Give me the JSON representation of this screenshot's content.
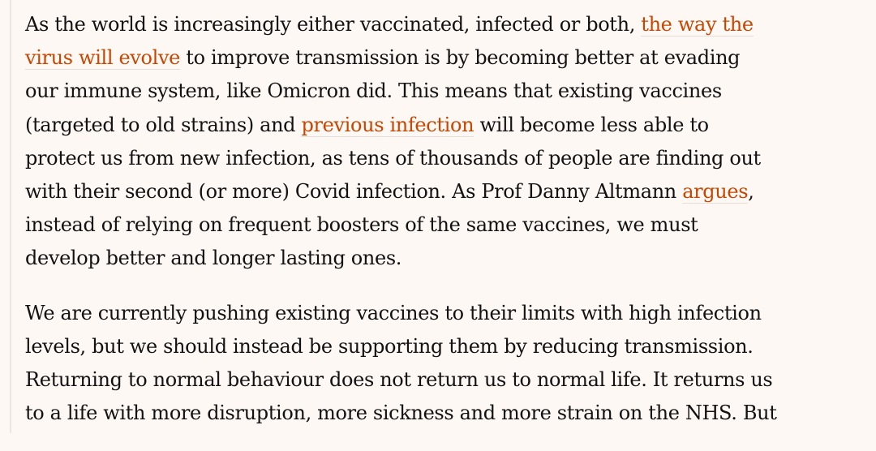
{
  "colors": {
    "background": "#fdf8f4",
    "text": "#121212",
    "link": "#c74600"
  },
  "paragraphs": [
    {
      "lines": [
        [
          {
            "t": "As the world is increasingly either vaccinated, infected or both, "
          },
          {
            "t": "the way the",
            "link": true
          }
        ],
        [
          {
            "t": "virus will evolve",
            "link": true
          },
          {
            "t": " to improve transmission is by becoming better at evading"
          }
        ],
        [
          {
            "t": "our immune system, like Omicron did. This means that existing vaccines"
          }
        ],
        [
          {
            "t": "(targeted to old strains) and "
          },
          {
            "t": "previous infection",
            "link": true
          },
          {
            "t": " will become less able to"
          }
        ],
        [
          {
            "t": "protect us from new infection, as tens of thousands of people are finding out"
          }
        ],
        [
          {
            "t": "with their second (or more) Covid infection. As Prof Danny Altmann "
          },
          {
            "t": "argues",
            "link": true
          },
          {
            "t": ","
          }
        ],
        [
          {
            "t": "instead of relying on frequent boosters of the same vaccines, we must"
          }
        ],
        [
          {
            "t": "develop better and longer lasting ones."
          }
        ]
      ]
    },
    {
      "lines": [
        [
          {
            "t": "We are currently pushing existing vaccines to their limits with high infection"
          }
        ],
        [
          {
            "t": "levels, but we should instead be supporting them by reducing transmission."
          }
        ],
        [
          {
            "t": "Returning to normal behaviour does not return us to normal life. It returns us"
          }
        ],
        [
          {
            "t": "to a life with more disruption, more sickness and more strain on the NHS. But"
          }
        ]
      ]
    }
  ]
}
